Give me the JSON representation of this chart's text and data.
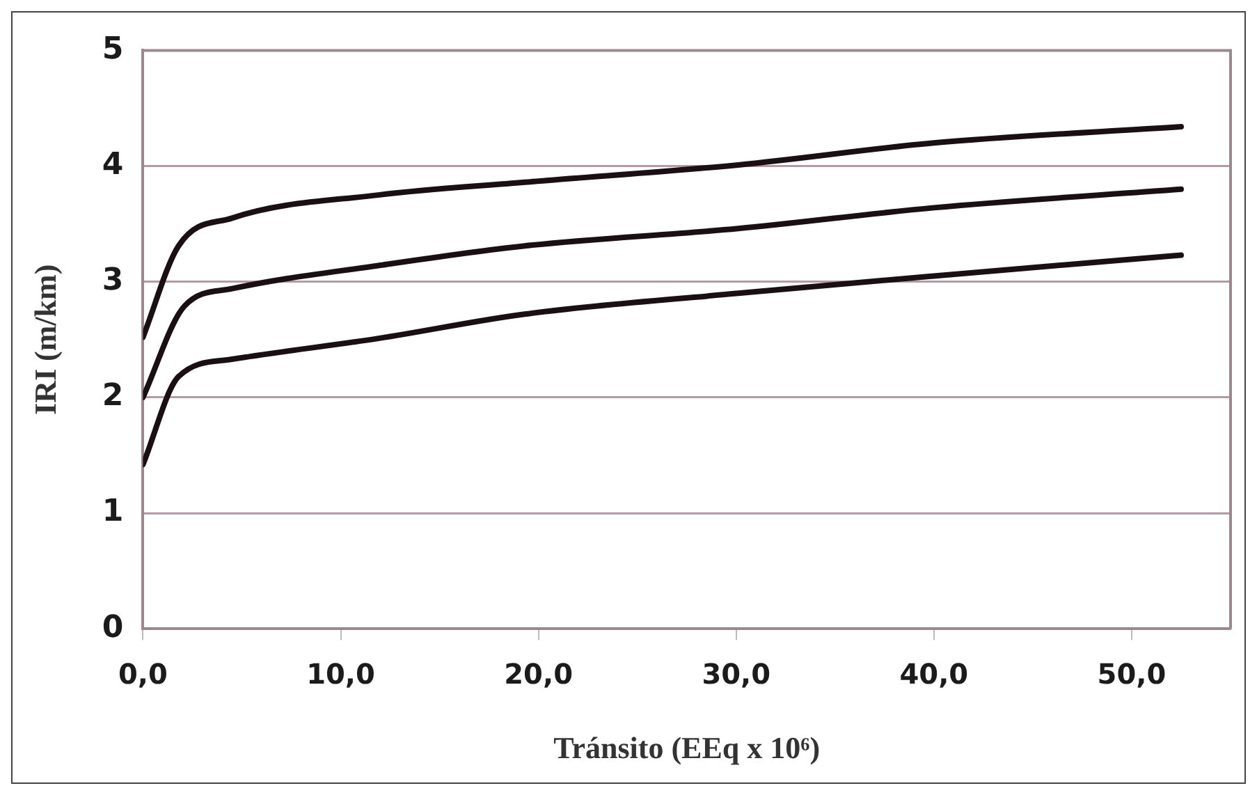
{
  "chart_data": {
    "type": "line",
    "xlabel": "Tránsito (EEq x 10⁶)",
    "ylabel": "IRI (m/km)",
    "xlim": [
      0,
      55
    ],
    "xticks": [
      {
        "value": 0,
        "label": "0,0"
      },
      {
        "value": 10,
        "label": "10,0"
      },
      {
        "value": 20,
        "label": "20,0"
      },
      {
        "value": 30,
        "label": "30,0"
      },
      {
        "value": 40,
        "label": "40,0"
      },
      {
        "value": 50,
        "label": "50,0"
      }
    ],
    "ylim": [
      0,
      5
    ],
    "yticks": [
      0,
      1,
      2,
      3,
      4,
      5
    ],
    "grid": "y",
    "legend": false,
    "marker": "none",
    "line_style": "solid",
    "series": [
      {
        "color": "#1a1014",
        "x": [
          0,
          1.8,
          4.5,
          11.9,
          19.3,
          30.1,
          40,
          52.5
        ],
        "values": [
          2.52,
          3.31,
          3.55,
          3.75,
          3.86,
          4.01,
          4.2,
          4.34
        ]
      },
      {
        "color": "#1a1014",
        "x": [
          0,
          2.1,
          4.5,
          11.9,
          19.3,
          30.1,
          40,
          52.5
        ],
        "values": [
          2.0,
          2.79,
          2.94,
          3.14,
          3.31,
          3.46,
          3.64,
          3.8
        ]
      },
      {
        "color": "#1a1014",
        "x": [
          0,
          1.8,
          4.5,
          11.9,
          19.3,
          30.1,
          40,
          52.5
        ],
        "values": [
          1.42,
          2.18,
          2.33,
          2.51,
          2.72,
          2.9,
          3.05,
          3.23
        ]
      }
    ]
  }
}
